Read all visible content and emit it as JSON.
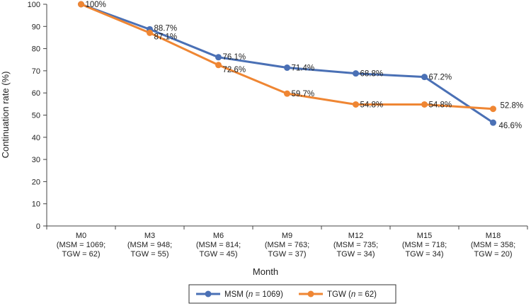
{
  "chart_data": {
    "type": "line",
    "xlabel": "Month",
    "ylabel": "Continuation rate (%)",
    "ylim": [
      0,
      100
    ],
    "ytick_step": 10,
    "yticks": [
      "0",
      "10",
      "20",
      "30",
      "40",
      "50",
      "60",
      "70",
      "80",
      "90",
      "100"
    ],
    "categories": [
      [
        "M0",
        "(MSM = 1069;",
        "TGW = 62)"
      ],
      [
        "M3",
        "(MSM = 948;",
        "TGW = 55)"
      ],
      [
        "M6",
        "(MSM = 814;",
        "TGW = 45)"
      ],
      [
        "M9",
        "(MSM = 763;",
        "TGW = 37)"
      ],
      [
        "M12",
        "(MSM = 735;",
        "TGW = 34)"
      ],
      [
        "M15",
        "(MSM = 718;",
        "TGW = 34)"
      ],
      [
        "M18",
        "(MSM = 358;",
        "TGW = 20)"
      ]
    ],
    "series": [
      {
        "name": "MSM",
        "legend_prefix": "MSM (",
        "legend_italic": "n",
        "legend_suffix": " = 1069)",
        "color": "#4a70b5",
        "values": [
          100,
          88.7,
          76.1,
          71.4,
          68.8,
          67.2,
          46.6
        ],
        "labels": [
          "",
          "88.7%",
          "76.1%",
          "71.4%",
          "68.8%",
          "67.2%",
          "46.6%"
        ]
      },
      {
        "name": "TGW",
        "legend_prefix": "TGW (",
        "legend_italic": "n",
        "legend_suffix": " = 62)",
        "color": "#ef8633",
        "values": [
          100,
          87.1,
          72.6,
          59.7,
          54.8,
          54.8,
          52.8
        ],
        "labels": [
          "100%",
          "87.1%",
          "72.6%",
          "59.7%",
          "54.8%",
          "54.8%",
          "52.8%"
        ]
      }
    ],
    "legend_position": "bottom",
    "grid": false
  }
}
